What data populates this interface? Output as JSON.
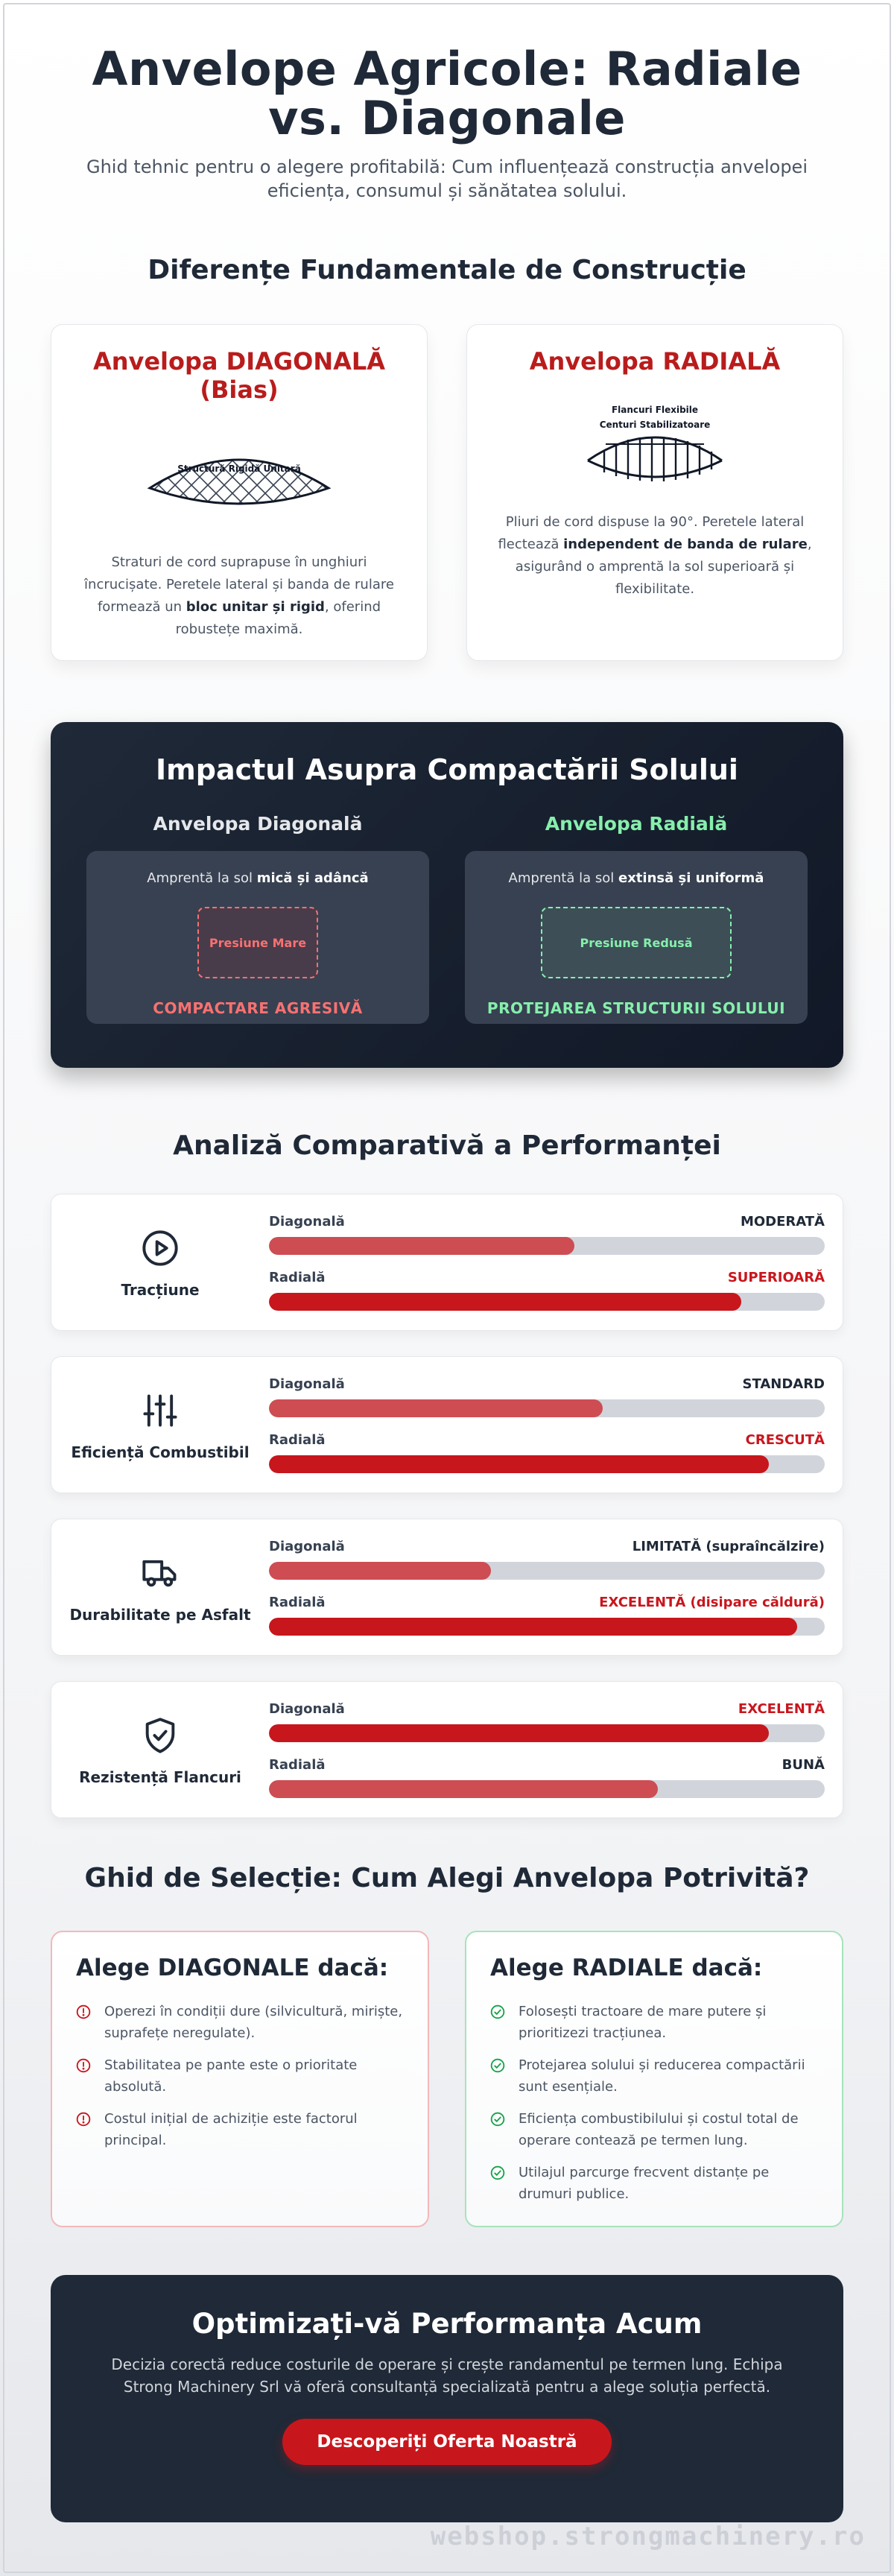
{
  "header": {
    "title": "Anvelope Agricole: Radiale vs. Diagonale",
    "subtitle": "Ghid tehnic pentru o alegere profitabilă: Cum influențează construcția anvelopei eficiența, consumul și sănătatea solului."
  },
  "construction": {
    "title": "Diferențe Fundamentale de Construcție",
    "diagonal": {
      "title": "Anvelopa DIAGONALĂ (Bias)",
      "diagram_label": "Structură Rigidă Unitară",
      "desc_pre": "Straturi de cord suprapuse în unghiuri încrucișate. Peretele lateral și banda de rulare formează un ",
      "desc_bold": "bloc unitar și rigid",
      "desc_post": ", oferind robustețe maximă."
    },
    "radial": {
      "title": "Anvelopa RADIALĂ",
      "diagram_label_1": "Flancuri Flexibile",
      "diagram_label_2": "Centuri Stabilizatoare",
      "desc_pre": "Pliuri de cord dispuse la 90°. Peretele lateral flectează ",
      "desc_bold": "independent de banda de rulare",
      "desc_post": ", asigurând o amprentă la sol superioară și flexibilitate."
    }
  },
  "compaction": {
    "title": "Impactul Asupra Compactării Solului",
    "diagonal": {
      "head": "Anvelopa Diagonală",
      "line_pre": "Amprentă la sol ",
      "line_bold": "mică și adâncă",
      "pressure": "Presiune Mare",
      "verdict": "COMPACTARE AGRESIVĂ"
    },
    "radial": {
      "head": "Anvelopa Radială",
      "line_pre": "Amprentă la sol ",
      "line_bold": "extinsă și uniformă",
      "pressure": "Presiune Redusă",
      "verdict": "PROTEJAREA STRUCTURII SOLULUI"
    }
  },
  "performance": {
    "title": "Analiză Comparativă a Performanței",
    "items": [
      {
        "label": "Tracțiune",
        "icon": "play-circle-icon",
        "rows": [
          {
            "name": "Diagonală",
            "value": "MODERATĂ",
            "level": 0.55,
            "highlight": false
          },
          {
            "name": "Radială",
            "value": "SUPERIOARĂ",
            "level": 0.85,
            "highlight": true
          }
        ]
      },
      {
        "label": "Eficiență Combustibil",
        "icon": "sliders-icon",
        "rows": [
          {
            "name": "Diagonală",
            "value": "STANDARD",
            "level": 0.6,
            "highlight": false
          },
          {
            "name": "Radială",
            "value": "CRESCUTĂ",
            "level": 0.9,
            "highlight": true
          }
        ]
      },
      {
        "label": "Durabilitate pe Asfalt",
        "icon": "truck-icon",
        "rows": [
          {
            "name": "Diagonală",
            "value": "LIMITATĂ (supraîncălzire)",
            "level": 0.4,
            "highlight": false
          },
          {
            "name": "Radială",
            "value": "EXCELENTĂ (disipare căldură)",
            "level": 0.95,
            "highlight": true
          }
        ]
      },
      {
        "label": "Rezistență Flancuri",
        "icon": "shield-check-icon",
        "rows": [
          {
            "name": "Diagonală",
            "value": "EXCELENTĂ",
            "level": 0.9,
            "highlight": true
          },
          {
            "name": "Radială",
            "value": "BUNĂ",
            "level": 0.7,
            "highlight": false
          }
        ]
      }
    ]
  },
  "guide": {
    "title": "Ghid de Selecție: Cum Alegi Anvelopa Potrivită?",
    "diagonal": {
      "title": "Alege DIAGONALE dacă:",
      "items": [
        "Operezi în condiții dure (silvicultură, miriște, suprafețe neregulate).",
        "Stabilitatea pe pante este o prioritate absolută.",
        "Costul inițial de achiziție este factorul principal."
      ]
    },
    "radial": {
      "title": "Alege RADIALE dacă:",
      "items": [
        "Folosești tractoare de mare putere și prioritizezi tracțiunea.",
        "Protejarea solului și reducerea compactării sunt esențiale.",
        "Eficiența combustibilului și costul total de operare contează pe termen lung.",
        "Utilajul parcurge frecvent distanțe pe drumuri publice."
      ]
    }
  },
  "cta": {
    "title": "Optimizați-vă Performanța Acum",
    "text": "Decizia corectă reduce costurile de operare și crește randamentul pe termen lung. Echipa Strong Machinery Srl vă oferă consultanță specializată pentru a alege soluția perfectă.",
    "button": "Descoperiți Oferta Noastră"
  },
  "watermark": "webshop.strongmachinery.ro",
  "colors": {
    "accent_red": "#c8161d",
    "muted_red": "#cd4d53",
    "green": "#86efac",
    "dark": "#1f2937"
  }
}
